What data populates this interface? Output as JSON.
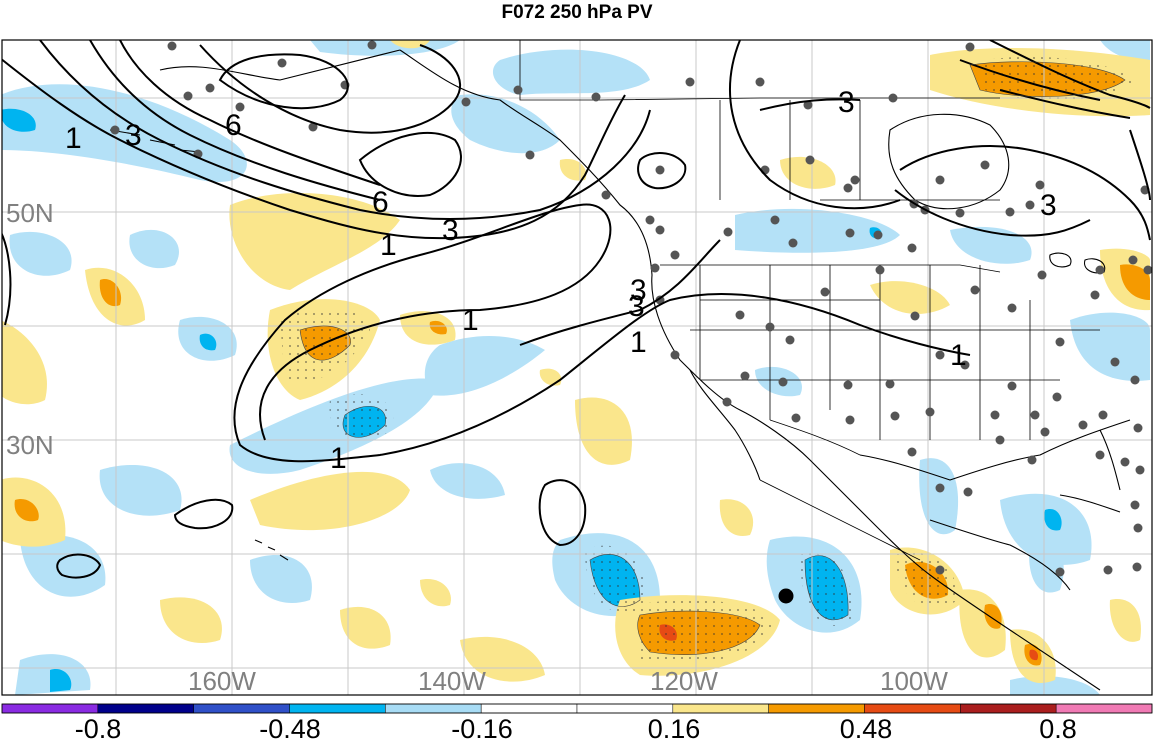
{
  "title": "F072 250 hPa PV",
  "lat_labels": [
    "50N",
    "30N"
  ],
  "lon_labels": [
    "160W",
    "140W",
    "120W",
    "100W"
  ],
  "contour_labels": [
    "1",
    "3",
    "6",
    "6",
    "3",
    "1",
    "3",
    "1",
    "1",
    "3",
    "1",
    "1",
    "3",
    "3"
  ],
  "colorbar": {
    "labels": [
      "-0.8",
      "-0.48",
      "-0.16",
      "0.16",
      "0.48",
      "0.8"
    ],
    "colors": [
      "#8a2be2",
      "#00008b",
      "#3050c8",
      "#00b4f0",
      "#a8dcf5",
      "#ffffff",
      "#ffffff",
      "#fae68c",
      "#f59a00",
      "#e64b14",
      "#aa1e1e",
      "#f07ab4"
    ]
  },
  "colors": {
    "neg_light": "#b4e1f7",
    "neg_mid": "#00b4f0",
    "pos_light": "#fae68c",
    "pos_mid": "#f59a00",
    "pos_dark": "#e64b14",
    "station": "#555555",
    "coast": "#000000",
    "grid": "#c0c0c0"
  }
}
